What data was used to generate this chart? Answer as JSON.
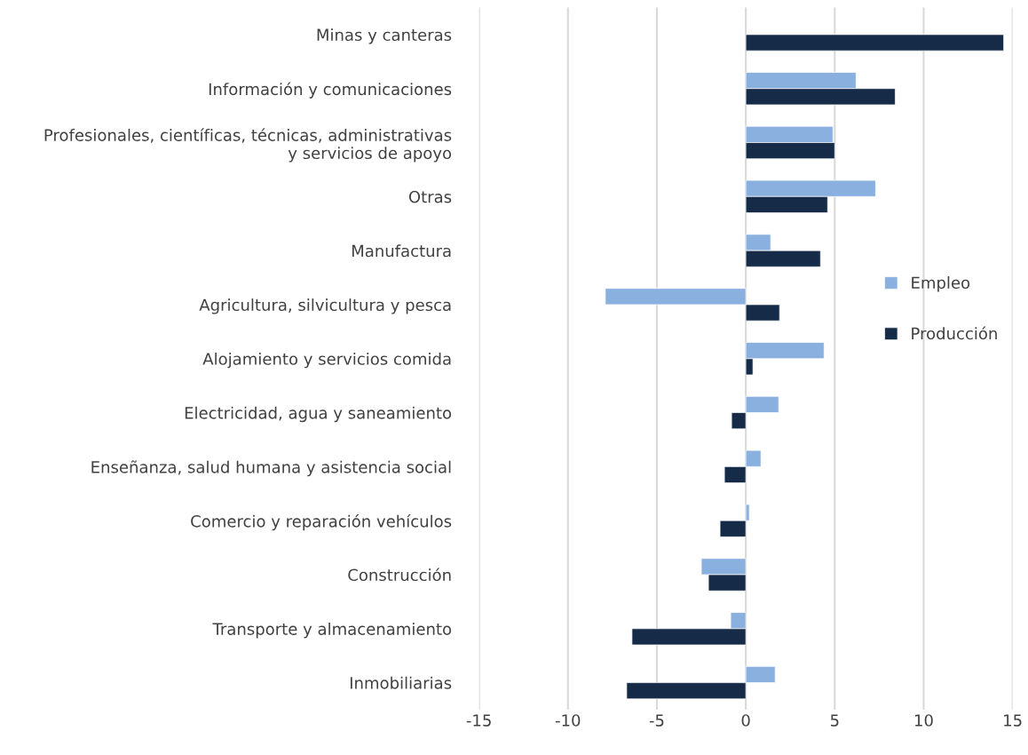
{
  "chart_data": {
    "type": "bar",
    "orientation": "horizontal",
    "categories": [
      "Minas y canteras",
      "Información y comunicaciones",
      "Profesionales, científicas, técnicas, administrativas y servicios de apoyo",
      "Otras",
      "Manufactura",
      "Agricultura, silvicultura y pesca",
      "Alojamiento y servicios comida",
      "Electricidad, agua y saneamiento",
      "Enseñanza, salud humana y asistencia social",
      "Comercio y reparación vehículos",
      "Construcción",
      "Transporte y almacenamiento",
      "Inmobiliarias"
    ],
    "series": [
      {
        "name": "Empleo",
        "color": "#8ab0e0",
        "values": [
          null,
          6.2,
          4.9,
          7.3,
          1.4,
          -7.9,
          4.4,
          1.85,
          0.85,
          0.2,
          -2.5,
          -0.85,
          1.65
        ]
      },
      {
        "name": "Producción",
        "color": "#162b47",
        "values": [
          14.5,
          8.4,
          5.0,
          4.6,
          4.2,
          1.9,
          0.4,
          -0.8,
          -1.2,
          -1.45,
          -2.1,
          -6.4,
          -6.7
        ]
      }
    ],
    "xlim": [
      -15,
      15
    ],
    "xticks": [
      -15,
      -10,
      -5,
      0,
      5,
      10,
      15
    ],
    "grid": "x",
    "legend": "right"
  }
}
